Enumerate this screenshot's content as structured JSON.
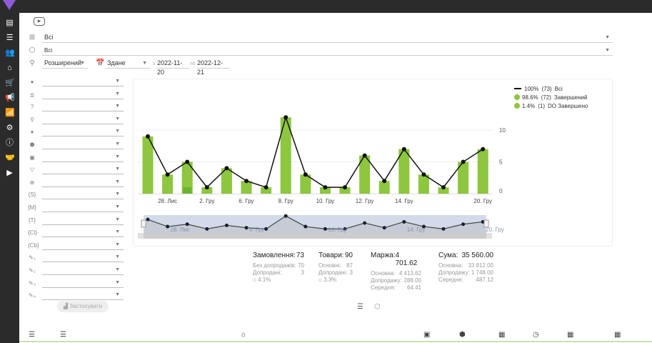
{
  "sidebar": {
    "items": [
      {
        "icon": "dashboard-icon",
        "glyph": "▤"
      },
      {
        "icon": "list-icon",
        "glyph": "☰"
      },
      {
        "icon": "users-icon",
        "glyph": "👥"
      },
      {
        "icon": "warehouse-icon",
        "glyph": "⌂"
      },
      {
        "icon": "cart-icon",
        "glyph": "🛒"
      },
      {
        "icon": "megaphone-icon",
        "glyph": "📢"
      },
      {
        "icon": "analytics-icon",
        "glyph": "📶",
        "active": true
      },
      {
        "icon": "sliders-icon",
        "glyph": "⚙"
      },
      {
        "icon": "info-icon",
        "glyph": "ⓘ"
      },
      {
        "icon": "handshake-icon",
        "glyph": "🤝"
      },
      {
        "icon": "video-icon",
        "glyph": "▶"
      }
    ]
  },
  "filters": {
    "group": "Всі",
    "product": "Всі",
    "search_mode": "Розширений",
    "status": "Здане",
    "from_label": "з",
    "date_from": "2022-11-20",
    "to_label": "по",
    "date_to": "2022-12-21"
  },
  "left_filters": [
    {
      "icon": "globe-icon",
      "glyph": "●"
    },
    {
      "icon": "sort-icon",
      "glyph": "≦"
    },
    {
      "icon": "help-icon",
      "glyph": "?"
    },
    {
      "icon": "hierarchy-icon",
      "glyph": "⚲"
    },
    {
      "icon": "face-icon",
      "glyph": "●"
    },
    {
      "icon": "box-icon",
      "glyph": "⬢"
    },
    {
      "icon": "money-icon",
      "glyph": "▣"
    },
    {
      "icon": "funnel-icon",
      "glyph": "▽"
    },
    {
      "icon": "world-icon",
      "glyph": "⊕"
    },
    {
      "icon": "var-s-icon",
      "glyph": "{S}"
    },
    {
      "icon": "var-m-icon",
      "glyph": "{M}"
    },
    {
      "icon": "var-t-icon",
      "glyph": "{T}"
    },
    {
      "icon": "var-ct-icon",
      "glyph": "{Ct}"
    },
    {
      "icon": "var-cb-icon",
      "glyph": "{Cb}"
    },
    {
      "icon": "pen-1-icon",
      "glyph": "✎₁"
    },
    {
      "icon": "pen-2-icon",
      "glyph": "✎₂"
    },
    {
      "icon": "pen-3-icon",
      "glyph": "✎₃"
    },
    {
      "icon": "pen-4-icon",
      "glyph": "✎₄"
    }
  ],
  "apply_label": "Застосувати",
  "legend": [
    {
      "pct": "100%",
      "count": "(73)",
      "label": "Всі",
      "color": "#111111"
    },
    {
      "pct": "98.6%",
      "count": "(72)",
      "label": "Завершений",
      "color": "#8dc63f"
    },
    {
      "pct": "1.4%",
      "count": "(1)",
      "label": "DO Завершено",
      "color": "#6ab42d"
    }
  ],
  "chart_data": {
    "type": "bar",
    "values": [
      9,
      3,
      5,
      1,
      4,
      2,
      1,
      12,
      3,
      1,
      1,
      6,
      2,
      7,
      3,
      1,
      5,
      7
    ],
    "do_values": [
      0,
      0,
      1,
      0,
      0,
      0,
      0,
      0,
      0,
      0,
      0,
      0,
      0,
      0,
      0,
      0,
      0,
      0
    ],
    "x_tick_labels": [
      {
        "i": 1,
        "label": "28. Лис"
      },
      {
        "i": 3,
        "label": "2. Гру"
      },
      {
        "i": 5,
        "label": "6. Гру"
      },
      {
        "i": 7,
        "label": "8. Гру"
      },
      {
        "i": 9,
        "label": "10. Гру"
      },
      {
        "i": 11,
        "label": "12. Гру"
      },
      {
        "i": 13,
        "label": "14. Гру"
      },
      {
        "i": 17,
        "label": "20. Гру"
      }
    ],
    "nav_labels": [
      {
        "i": 1,
        "label": "28. Лис"
      },
      {
        "i": 5,
        "label": "6. Гру"
      },
      {
        "i": 9,
        "label": "10. Гру"
      },
      {
        "i": 13,
        "label": "14. Гру"
      },
      {
        "i": 17,
        "label": "20. Гру"
      }
    ],
    "y_ticks": [
      0,
      5,
      10
    ],
    "ylim": [
      0,
      12.5
    ],
    "bar_color": "#8dc63f",
    "line_color": "#111111",
    "grid": true
  },
  "stats": {
    "orders": {
      "label": "Замовлення:",
      "value": "73",
      "rows": [
        [
          "Без допродажів:",
          "70"
        ],
        [
          "Допродані:",
          "3"
        ]
      ],
      "pct": "4.1%"
    },
    "goods": {
      "label": "Товари:",
      "value": "90",
      "rows": [
        [
          "Основні:",
          "87"
        ],
        [
          "Допродані:",
          "3"
        ]
      ],
      "pct": "3.3%"
    },
    "margin": {
      "label": "Маржа:",
      "value": "4 701.62",
      "rows": [
        [
          "Основна:",
          "4 413.62"
        ],
        [
          "Допродажу:",
          "288.00"
        ],
        [
          "Середня:",
          "64.41"
        ]
      ]
    },
    "sum": {
      "label": "Сума:",
      "value": "35 560.00",
      "rows": [
        [
          "Основна:",
          "33 812.00"
        ],
        [
          "Допродажу:",
          "1 748.00"
        ],
        [
          "Середня:",
          "487.12"
        ]
      ]
    }
  }
}
